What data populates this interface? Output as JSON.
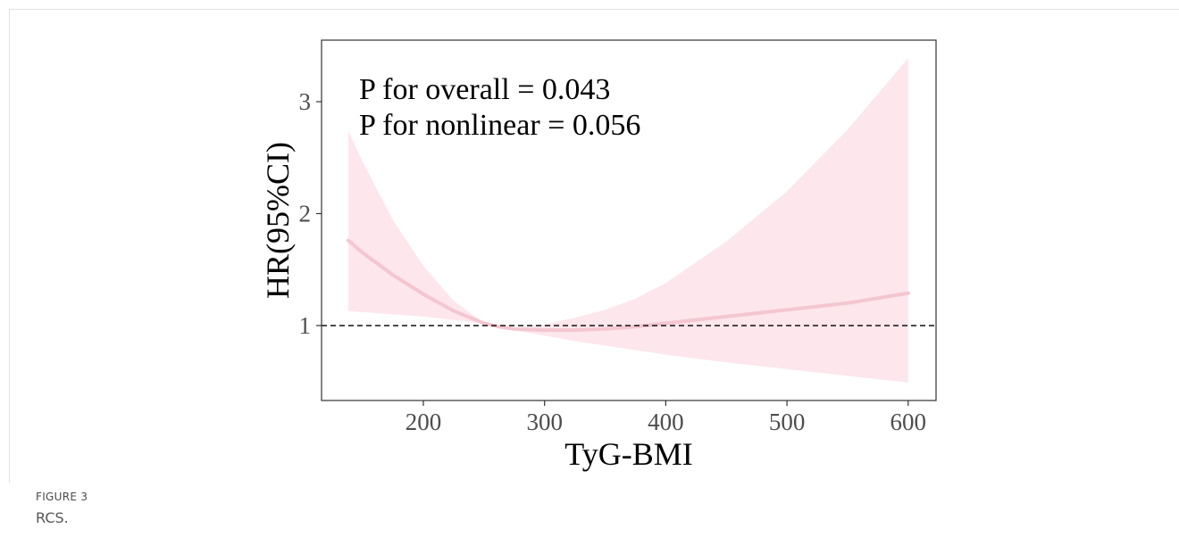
{
  "figure": {
    "label": "FIGURE 3",
    "caption": "RCS."
  },
  "chart_data": {
    "type": "line",
    "xlabel": "TyG-BMI",
    "ylabel": "HR(95%CI)",
    "xlim": [
      116,
      623
    ],
    "ylim": [
      0.33,
      3.55
    ],
    "xticks": [
      200,
      300,
      400,
      500,
      600
    ],
    "yticks": [
      1,
      2,
      3
    ],
    "reference_line": {
      "y": 1,
      "style": "dashed"
    },
    "annotations": [
      "P for overall = 0.043",
      "P for nonlinear = 0.056"
    ],
    "series": [
      {
        "x": [
          138,
          150,
          175,
          200,
          225,
          250,
          262,
          275,
          300,
          325,
          350,
          375,
          400,
          450,
          500,
          550,
          600
        ],
        "hr": [
          1.76,
          1.65,
          1.45,
          1.28,
          1.13,
          1.02,
          0.99,
          0.97,
          0.96,
          0.96,
          0.97,
          0.99,
          1.02,
          1.08,
          1.14,
          1.2,
          1.29
        ],
        "lower": [
          1.13,
          1.12,
          1.1,
          1.08,
          1.05,
          1.02,
          0.99,
          0.96,
          0.91,
          0.86,
          0.82,
          0.78,
          0.74,
          0.67,
          0.61,
          0.55,
          0.49
        ],
        "upper": [
          2.74,
          2.46,
          1.94,
          1.53,
          1.22,
          1.02,
          0.99,
          0.98,
          1.01,
          1.07,
          1.14,
          1.24,
          1.38,
          1.75,
          2.2,
          2.75,
          3.39
        ]
      }
    ],
    "colors": {
      "line": "#f4c6d0",
      "band": "#fde6ec",
      "axis": "#333333",
      "ref": "#111111"
    },
    "grid": false
  }
}
